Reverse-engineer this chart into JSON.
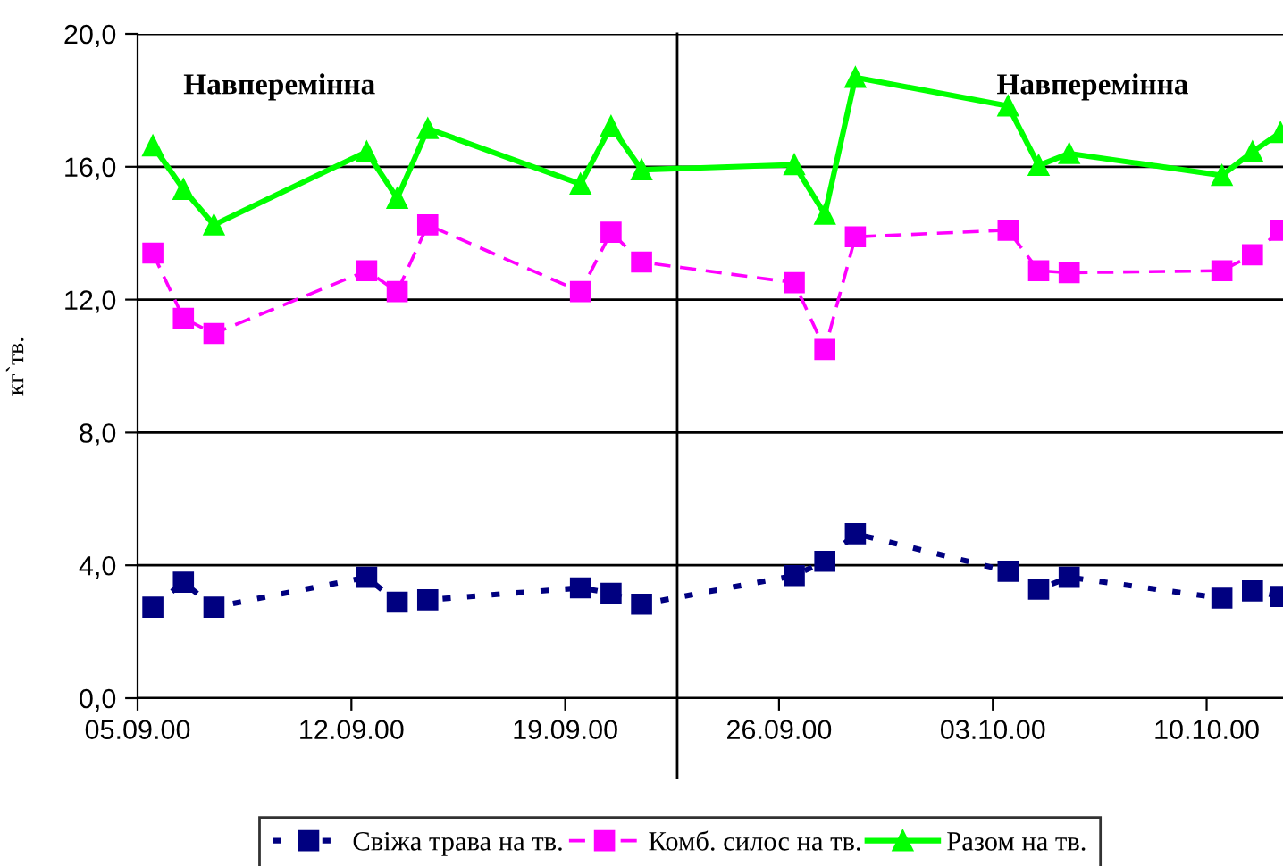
{
  "chart_data": {
    "type": "line",
    "ylabel": "кг`тв.",
    "x": [
      "2000-09-05T12:00",
      "2000-09-06T12:00",
      "2000-09-07T12:00",
      "2000-09-12T12:00",
      "2000-09-13T12:00",
      "2000-09-14T12:00",
      "2000-09-19T12:00",
      "2000-09-20T12:00",
      "2000-09-21T12:00",
      "2000-09-26T12:00",
      "2000-09-27T12:00",
      "2000-09-28T12:00",
      "2000-10-03T12:00",
      "2000-10-04T12:00",
      "2000-10-05T12:00",
      "2000-10-10T12:00",
      "2000-10-11T12:00",
      "2000-10-12T10:00"
    ],
    "series": [
      {
        "name": "Свіжа трава на тв.",
        "color": "#000080",
        "line_style": "dotted",
        "marker": "square",
        "values": [
          2.74,
          3.49,
          2.74,
          3.64,
          2.89,
          2.96,
          3.32,
          3.16,
          2.83,
          3.69,
          4.12,
          4.95,
          3.82,
          3.28,
          3.64,
          3.01,
          3.23,
          3.06
        ]
      },
      {
        "name": "Комб. силос на тв.",
        "color": "#ff00ff",
        "line_style": "dashed",
        "marker": "square",
        "values": [
          13.4,
          11.44,
          10.98,
          12.87,
          12.24,
          14.25,
          12.24,
          14.03,
          13.13,
          12.51,
          10.5,
          13.89,
          14.09,
          12.87,
          12.81,
          12.87,
          13.35,
          14.09
        ]
      },
      {
        "name": "Разом на тв.",
        "color": "#00ff00",
        "line_style": "solid",
        "marker": "triangle",
        "values": [
          16.63,
          15.32,
          14.25,
          16.45,
          15.05,
          17.15,
          15.48,
          17.22,
          15.91,
          16.06,
          14.57,
          18.69,
          17.83,
          16.04,
          16.4,
          15.74,
          16.45,
          17.03
        ]
      }
    ],
    "xlim": [
      "2000-09-05",
      "2000-10-12T12:00"
    ],
    "xticks": [
      {
        "value": "2000-09-05",
        "label": "05.09.00"
      },
      {
        "value": "2000-09-12",
        "label": "12.09.00"
      },
      {
        "value": "2000-09-19",
        "label": "19.09.00"
      },
      {
        "value": "2000-09-26",
        "label": "26.09.00"
      },
      {
        "value": "2000-10-03",
        "label": "03.10.00"
      },
      {
        "value": "2000-10-10",
        "label": "10.10.00"
      }
    ],
    "ylim": [
      0,
      20
    ],
    "yticks": [
      {
        "value": 0,
        "label": "0,0"
      },
      {
        "value": 4,
        "label": "4,0"
      },
      {
        "value": 8,
        "label": "8,0"
      },
      {
        "value": 12,
        "label": "12,0"
      },
      {
        "value": 16,
        "label": "16,0"
      },
      {
        "value": 20,
        "label": "20,0"
      }
    ],
    "ref_lines": [
      {
        "axis": "x",
        "value": "2000-09-22T16:00",
        "color": "#000000"
      }
    ],
    "annotations": [
      "Навперемінна",
      "Навперемінна"
    ],
    "grid": "y",
    "legend": "bottom"
  }
}
